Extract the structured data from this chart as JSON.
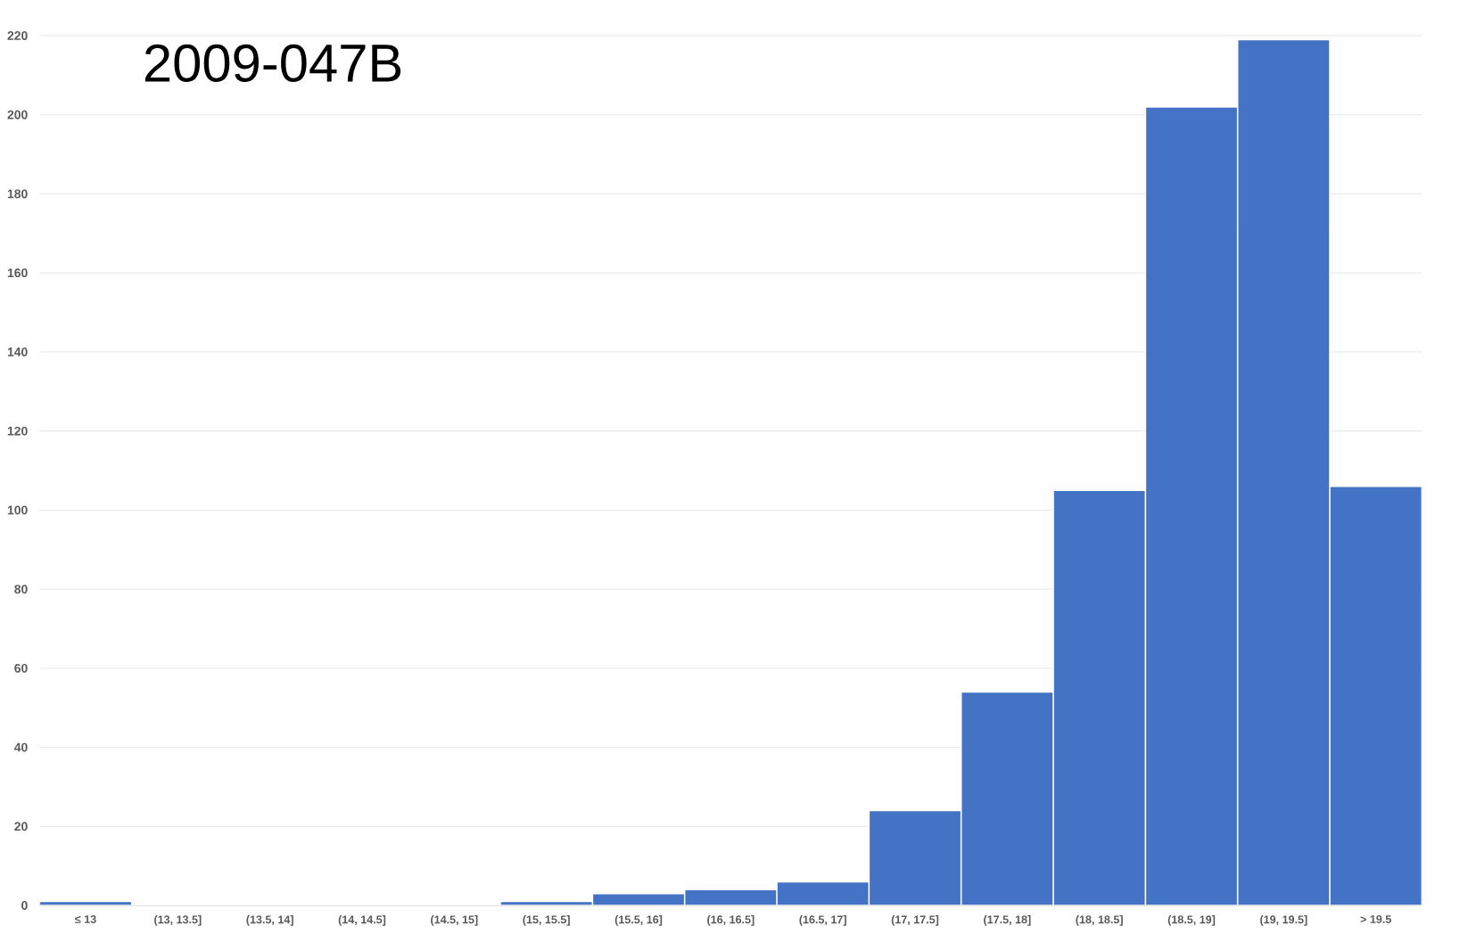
{
  "chart_data": {
    "type": "bar",
    "title": "2009-047B",
    "categories": [
      "≤ 13",
      "(13, 13.5]",
      "(13.5, 14]",
      "(14, 14.5]",
      "(14.5, 15]",
      "(15, 15.5]",
      "(15.5, 16]",
      "(16, 16.5]",
      "(16.5, 17]",
      "(17, 17.5]",
      "(17.5, 18]",
      "(18, 18.5]",
      "(18.5, 19]",
      "(19, 19.5]",
      "> 19.5"
    ],
    "values": [
      1,
      0,
      0,
      0,
      0,
      1,
      3,
      4,
      6,
      24,
      54,
      105,
      202,
      219,
      106
    ],
    "color": "#4472c4",
    "ylim": [
      0,
      220
    ],
    "yticks": [
      0,
      20,
      40,
      60,
      80,
      100,
      120,
      140,
      160,
      180,
      200,
      220
    ],
    "grid": "y"
  }
}
